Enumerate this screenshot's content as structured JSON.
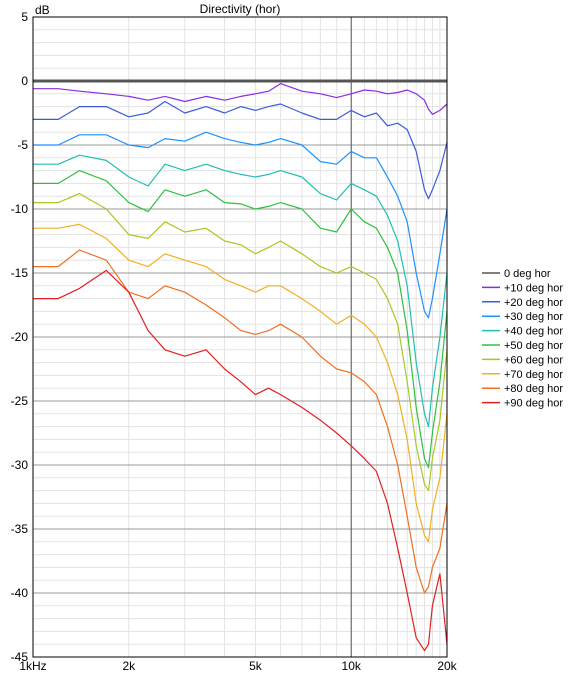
{
  "chart_data": {
    "type": "line",
    "title": "Directivity (hor)",
    "ylabel": "dB",
    "xlabel": "",
    "x_scale": "log",
    "xlim": [
      1000,
      20000
    ],
    "ylim": [
      -45,
      5
    ],
    "grid": true,
    "legend_position": "right",
    "x_ticks": [
      {
        "value": 1000,
        "label": "1kHz"
      },
      {
        "value": 2000,
        "label": "2k"
      },
      {
        "value": 5000,
        "label": "5k"
      },
      {
        "value": 10000,
        "label": "10k"
      },
      {
        "value": 20000,
        "label": "20k"
      }
    ],
    "y_ticks": [
      {
        "value": 5,
        "label": "5"
      },
      {
        "value": 0,
        "label": "0"
      },
      {
        "value": -5,
        "label": "-5"
      },
      {
        "value": -10,
        "label": "-10"
      },
      {
        "value": -15,
        "label": "-15"
      },
      {
        "value": -20,
        "label": "-20"
      },
      {
        "value": -25,
        "label": "-25"
      },
      {
        "value": -30,
        "label": "-30"
      },
      {
        "value": -35,
        "label": "-35"
      },
      {
        "value": -40,
        "label": "-40"
      },
      {
        "value": -45,
        "label": "-45"
      }
    ],
    "x": [
      1000,
      1200,
      1400,
      1700,
      2000,
      2300,
      2600,
      3000,
      3500,
      4000,
      4500,
      5000,
      5500,
      6000,
      7000,
      8000,
      9000,
      10000,
      11000,
      12000,
      13000,
      14000,
      15000,
      16000,
      17000,
      17500,
      18000,
      19000,
      20000
    ],
    "series": [
      {
        "name": "0 deg hor",
        "color": "#555555",
        "values": [
          0,
          0,
          0,
          0,
          0,
          0,
          0,
          0,
          0,
          0,
          0,
          0,
          0,
          0,
          0,
          0,
          0,
          0,
          0,
          0,
          0,
          0,
          0,
          0,
          0,
          0,
          0,
          0,
          0
        ]
      },
      {
        "name": "+10 deg hor",
        "color": "#8a2be2",
        "values": [
          -0.6,
          -0.6,
          -0.8,
          -1.0,
          -1.2,
          -1.5,
          -1.2,
          -1.6,
          -1.2,
          -1.5,
          -1.2,
          -1.0,
          -0.8,
          -0.2,
          -0.8,
          -1.0,
          -1.3,
          -1.0,
          -0.7,
          -0.8,
          -1.0,
          -0.9,
          -0.7,
          -1.0,
          -1.5,
          -2.2,
          -2.6,
          -2.3,
          -1.8
        ]
      },
      {
        "name": "+20 deg hor",
        "color": "#3b5bdb",
        "values": [
          -3.0,
          -3.0,
          -2.0,
          -2.0,
          -2.8,
          -2.5,
          -1.6,
          -2.5,
          -2.0,
          -2.5,
          -2.0,
          -2.3,
          -2.0,
          -1.8,
          -2.5,
          -3.0,
          -3.0,
          -2.3,
          -2.8,
          -2.5,
          -3.5,
          -3.3,
          -3.8,
          -5.5,
          -8.5,
          -9.2,
          -8.5,
          -7.0,
          -4.8
        ]
      },
      {
        "name": "+30 deg hor",
        "color": "#1e90ff",
        "values": [
          -5.0,
          -5.0,
          -4.2,
          -4.2,
          -5.0,
          -5.2,
          -4.5,
          -4.7,
          -4.0,
          -4.5,
          -4.8,
          -5.0,
          -4.8,
          -4.5,
          -5.0,
          -6.3,
          -6.5,
          -5.5,
          -6.0,
          -6.0,
          -7.5,
          -9.0,
          -11.0,
          -15.0,
          -18.0,
          -18.5,
          -17.0,
          -13.5,
          -10.0
        ]
      },
      {
        "name": "+40 deg hor",
        "color": "#20c0b0",
        "values": [
          -6.5,
          -6.5,
          -5.8,
          -6.2,
          -7.5,
          -8.2,
          -6.5,
          -7.0,
          -6.5,
          -7.0,
          -7.3,
          -7.5,
          -7.3,
          -7.0,
          -7.5,
          -8.8,
          -9.3,
          -8.0,
          -8.5,
          -9.0,
          -10.5,
          -12.5,
          -16.0,
          -22.0,
          -26.0,
          -27.0,
          -24.0,
          -20.0,
          -15.0
        ]
      },
      {
        "name": "+50 deg hor",
        "color": "#30c040",
        "values": [
          -8.0,
          -8.0,
          -7.0,
          -7.8,
          -9.5,
          -10.2,
          -8.5,
          -9.0,
          -8.5,
          -9.5,
          -9.6,
          -10.0,
          -9.8,
          -9.5,
          -10.0,
          -11.5,
          -11.8,
          -10.0,
          -11.0,
          -11.5,
          -13.0,
          -15.0,
          -19.5,
          -25.5,
          -29.5,
          -30.2,
          -27.5,
          -23.5,
          -18.0
        ]
      },
      {
        "name": "+60 deg hor",
        "color": "#a8c820",
        "values": [
          -9.5,
          -9.5,
          -8.8,
          -10.0,
          -12.0,
          -12.3,
          -11.0,
          -11.8,
          -11.5,
          -12.5,
          -12.8,
          -13.5,
          -13.0,
          -12.5,
          -13.5,
          -14.5,
          -15.0,
          -14.5,
          -15.0,
          -15.5,
          -17.0,
          -19.0,
          -23.5,
          -28.5,
          -31.5,
          -32.0,
          -29.5,
          -26.5,
          -21.0
        ]
      },
      {
        "name": "+70 deg hor",
        "color": "#f0b020",
        "values": [
          -11.5,
          -11.5,
          -11.2,
          -12.3,
          -14.0,
          -14.5,
          -13.5,
          -14.0,
          -14.5,
          -15.5,
          -16.0,
          -16.5,
          -16.0,
          -16.0,
          -17.0,
          -18.0,
          -19.0,
          -18.3,
          -19.0,
          -20.0,
          -22.0,
          -24.5,
          -28.0,
          -33.0,
          -35.5,
          -36.0,
          -33.5,
          -31.0,
          -26.0
        ]
      },
      {
        "name": "+80 deg hor",
        "color": "#f07020",
        "values": [
          -14.5,
          -14.5,
          -13.2,
          -14.0,
          -16.5,
          -17.0,
          -16.0,
          -16.5,
          -17.5,
          -18.5,
          -19.5,
          -19.8,
          -19.5,
          -19.0,
          -20.0,
          -21.5,
          -22.5,
          -22.8,
          -23.5,
          -24.5,
          -27.0,
          -30.0,
          -34.0,
          -38.0,
          -40.0,
          -39.5,
          -38.0,
          -36.5,
          -33.0
        ]
      },
      {
        "name": "+90 deg hor",
        "color": "#e02020",
        "values": [
          -17.0,
          -17.0,
          -16.2,
          -14.8,
          -16.5,
          -19.5,
          -21.0,
          -21.5,
          -21.0,
          -22.5,
          -23.5,
          -24.5,
          -24.0,
          -24.5,
          -25.5,
          -26.5,
          -27.5,
          -28.5,
          -29.5,
          -30.5,
          -33.0,
          -36.5,
          -40.0,
          -43.5,
          -44.5,
          -44.0,
          -41.0,
          -38.5,
          -44.0
        ]
      }
    ]
  }
}
